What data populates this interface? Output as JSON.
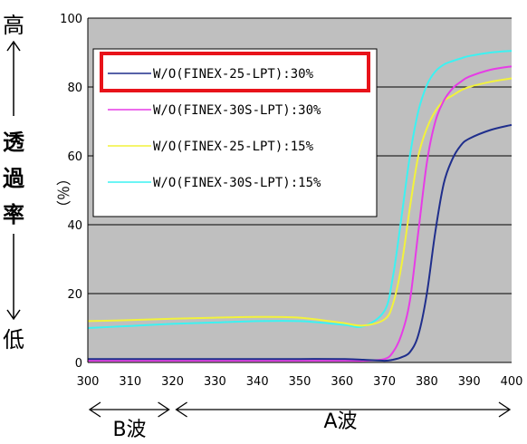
{
  "chart_data": {
    "type": "line",
    "x": [
      300,
      310,
      320,
      330,
      340,
      350,
      360,
      365,
      370,
      372,
      374,
      376,
      378,
      380,
      382,
      384,
      386,
      388,
      390,
      395,
      400
    ],
    "series": [
      {
        "name": "W/O(FINEX-25-LPT):30%",
        "color": "#1f2e8c",
        "values": [
          1,
          1,
          1,
          1,
          1,
          1,
          1,
          0.8,
          0.5,
          0.8,
          1.5,
          3,
          8,
          20,
          38,
          52,
          59,
          63,
          65,
          67.5,
          69
        ]
      },
      {
        "name": "W/O(FINEX-30S-LPT):30%",
        "color": "#e63ce6",
        "values": [
          0.5,
          0.5,
          0.5,
          0.5,
          0.5,
          0.5,
          0.5,
          0.5,
          1,
          3,
          8,
          18,
          38,
          58,
          70,
          76,
          79.5,
          81.5,
          83,
          85,
          86
        ]
      },
      {
        "name": "W/O(FINEX-25-LPT):15%",
        "color": "#f2f23c",
        "values": [
          12,
          12.3,
          12.7,
          13,
          13.2,
          13,
          11.5,
          10.7,
          12.5,
          17,
          28,
          45,
          60,
          68,
          73,
          76,
          77.5,
          79,
          80,
          81.5,
          82.5
        ]
      },
      {
        "name": "W/O(FINEX-30S-LPT):15%",
        "color": "#3cf2f2",
        "values": [
          10,
          10.6,
          11.2,
          11.6,
          12,
          12,
          11,
          10.5,
          15,
          25,
          42,
          60,
          73,
          80.5,
          84.5,
          86.5,
          87.5,
          88.3,
          89,
          90,
          90.5
        ]
      }
    ],
    "xticks": [
      "300",
      "310",
      "320",
      "330",
      "340",
      "350",
      "360",
      "370",
      "380",
      "390",
      "400"
    ],
    "yticks": [
      "0",
      "20",
      "40",
      "60",
      "80",
      "100"
    ],
    "xlim": [
      300,
      400
    ],
    "ylim": [
      0,
      100
    ],
    "ylabel": "（％）",
    "grid": "horizontal",
    "legend_position": "top-left",
    "highlight_color": "#e8131a",
    "highlighted_series": 0,
    "plot_bg": "#bfbfbf"
  },
  "side_labels": {
    "high": "高",
    "arrow_up": "↑",
    "t1": "透",
    "t2": "過",
    "t3": "率",
    "arrow_down": "↓",
    "low": "低"
  },
  "bands": {
    "b_wave": "B波",
    "a_wave": "A波",
    "b_range": [
      300,
      320
    ],
    "a_range": [
      320,
      400
    ]
  }
}
